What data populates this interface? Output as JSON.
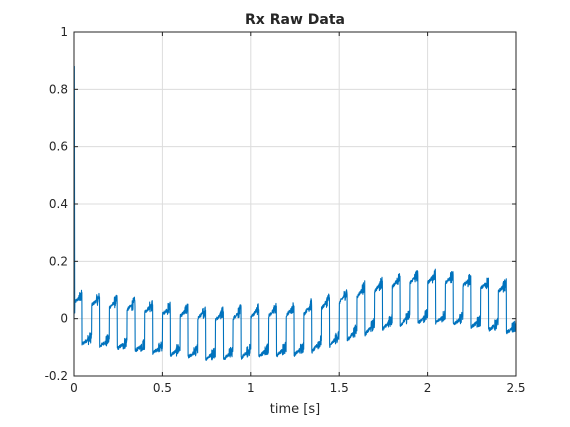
{
  "chart_data": {
    "type": "line",
    "title": "Rx Raw Data",
    "xlabel": "time [s]",
    "ylabel": "",
    "xlim": [
      0,
      2.5
    ],
    "ylim": [
      -0.2,
      1
    ],
    "xticks": [
      0,
      0.5,
      1,
      1.5,
      2,
      2.5
    ],
    "xtick_labels": [
      "0",
      "0.5",
      "1",
      "1.5",
      "2",
      "2.5"
    ],
    "yticks": [
      -0.2,
      0,
      0.2,
      0.4,
      0.6,
      0.8,
      1
    ],
    "ytick_labels": [
      "-0.2",
      "0",
      "0.2",
      "0.4",
      "0.6",
      "0.8",
      "1"
    ],
    "grid": true,
    "box": true,
    "series": [
      {
        "color": "#0072BD",
        "description_values": {
          "initial_spike_peak": 0.88,
          "symbol_period_s": 0.1,
          "square_wave_half_amplitude": 0.07,
          "noise_amplitude": 0.02,
          "baseline_offset": [
            [
              0,
              0.0
            ],
            [
              0.5,
              -0.04
            ],
            [
              0.8,
              -0.06
            ],
            [
              1.0,
              -0.05
            ],
            [
              1.3,
              -0.04
            ],
            [
              1.5,
              0.0
            ],
            [
              1.7,
              0.04
            ],
            [
              1.9,
              0.07
            ],
            [
              2.1,
              0.07
            ],
            [
              2.3,
              0.05
            ],
            [
              2.5,
              0.03
            ]
          ]
        }
      }
    ]
  }
}
